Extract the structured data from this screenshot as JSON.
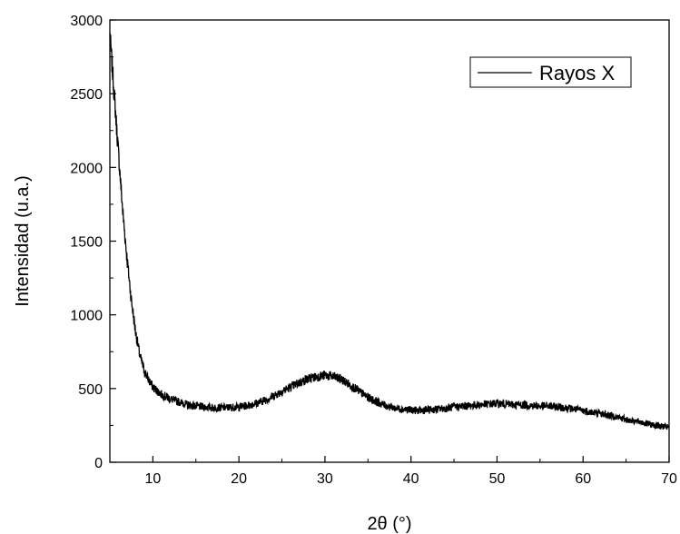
{
  "chart_data": {
    "type": "line",
    "xlabel": "2θ (°)",
    "ylabel": "Intensidad (u.a.)",
    "xlim": [
      5,
      70
    ],
    "ylim": [
      0,
      3000
    ],
    "x_ticks": [
      10,
      20,
      30,
      40,
      50,
      60,
      70
    ],
    "y_ticks": [
      0,
      500,
      1000,
      1500,
      2000,
      2500,
      3000
    ],
    "grid": false,
    "legend_position": "top-right",
    "series": [
      {
        "name": "Rayos X",
        "color": "#000000",
        "x": [
          5,
          5.5,
          6,
          6.5,
          7,
          7.5,
          8,
          8.5,
          9,
          9.5,
          10,
          11,
          12,
          13,
          14,
          15,
          16,
          17,
          18,
          19,
          20,
          21,
          22,
          23,
          24,
          25,
          26,
          27,
          28,
          29,
          30,
          31,
          32,
          33,
          34,
          35,
          36,
          37,
          38,
          39,
          40,
          41,
          42,
          43,
          44,
          45,
          46,
          47,
          48,
          49,
          50,
          51,
          52,
          53,
          54,
          55,
          56,
          57,
          58,
          59,
          60,
          61,
          62,
          63,
          64,
          65,
          66,
          67,
          68,
          69,
          70
        ],
        "y": [
          2900,
          2500,
          2100,
          1700,
          1380,
          1100,
          880,
          720,
          620,
          560,
          510,
          460,
          430,
          410,
          390,
          380,
          375,
          370,
          370,
          372,
          375,
          385,
          400,
          420,
          450,
          480,
          510,
          540,
          565,
          580,
          590,
          580,
          560,
          520,
          480,
          440,
          410,
          385,
          370,
          360,
          355,
          350,
          355,
          360,
          365,
          375,
          380,
          385,
          390,
          395,
          400,
          395,
          390,
          390,
          385,
          380,
          380,
          375,
          370,
          360,
          350,
          340,
          330,
          320,
          305,
          290,
          280,
          268,
          255,
          245,
          235
        ]
      }
    ]
  }
}
